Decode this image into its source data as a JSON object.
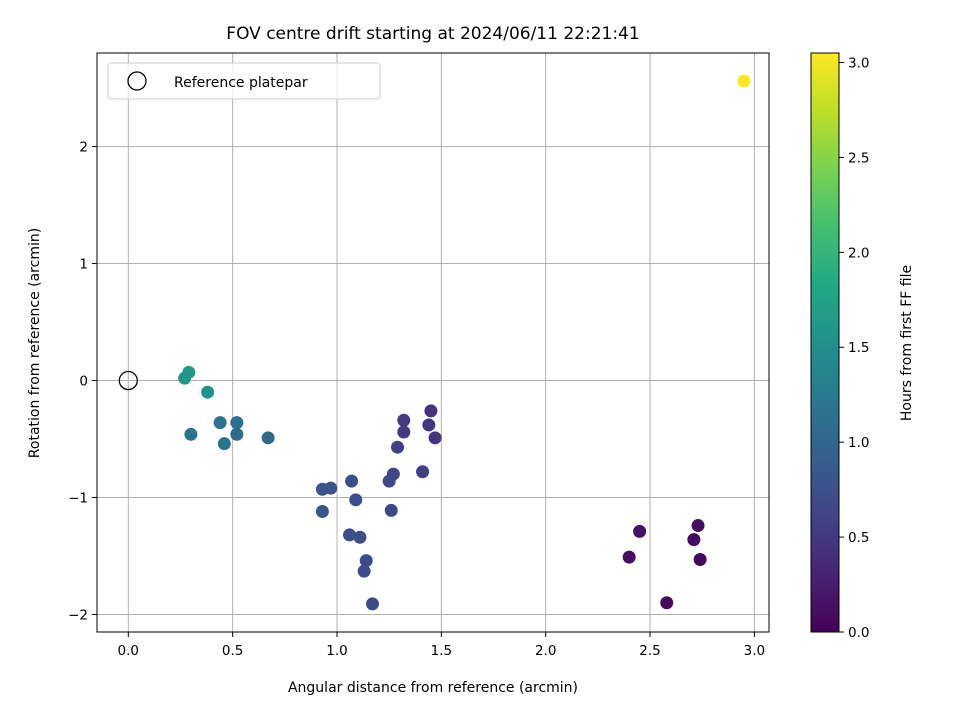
{
  "chart_data": {
    "type": "scatter",
    "title": "FOV centre drift starting at 2024/06/11 22:21:41",
    "xlabel": "Angular distance from reference (arcmin)",
    "ylabel": "Rotation from reference (arcmin)",
    "xlim": [
      -0.15,
      3.07
    ],
    "ylim": [
      -2.15,
      2.8
    ],
    "xticks": [
      "0.0",
      "0.5",
      "1.0",
      "1.5",
      "2.0",
      "2.5",
      "3.0"
    ],
    "xtick_values": [
      0,
      0.5,
      1.0,
      1.5,
      2.0,
      2.5,
      3.0
    ],
    "yticks": [
      "−2",
      "−1",
      "0",
      "1",
      "2"
    ],
    "ytick_values": [
      -2,
      -1,
      0,
      1,
      2
    ],
    "grid": true,
    "legend_position": "top-left",
    "legend": [
      {
        "label": "Reference platepar",
        "marker": "open-circle"
      }
    ],
    "reference_point": {
      "x": 0.0,
      "y": 0.0
    },
    "colorbar": {
      "label": "Hours from first FF file",
      "range": [
        0.0,
        3.05
      ],
      "ticks": [
        "0.0",
        "0.5",
        "1.0",
        "1.5",
        "2.0",
        "2.5",
        "3.0"
      ],
      "tick_values": [
        0.0,
        0.5,
        1.0,
        1.5,
        2.0,
        2.5,
        3.0
      ],
      "colormap": "viridis"
    },
    "points": [
      {
        "x": 2.95,
        "y": 2.56,
        "hours": 3.05
      },
      {
        "x": 0.29,
        "y": 0.07,
        "hours": 1.65
      },
      {
        "x": 0.27,
        "y": 0.02,
        "hours": 1.6
      },
      {
        "x": 0.38,
        "y": -0.1,
        "hours": 1.55
      },
      {
        "x": 0.3,
        "y": -0.46,
        "hours": 1.2
      },
      {
        "x": 0.44,
        "y": -0.36,
        "hours": 1.15
      },
      {
        "x": 0.46,
        "y": -0.54,
        "hours": 1.15
      },
      {
        "x": 0.52,
        "y": -0.36,
        "hours": 1.1
      },
      {
        "x": 0.52,
        "y": -0.46,
        "hours": 1.05
      },
      {
        "x": 0.67,
        "y": -0.49,
        "hours": 1.05
      },
      {
        "x": 0.93,
        "y": -0.93,
        "hours": 0.8
      },
      {
        "x": 0.97,
        "y": -0.92,
        "hours": 0.78
      },
      {
        "x": 0.93,
        "y": -1.12,
        "hours": 0.82
      },
      {
        "x": 1.07,
        "y": -0.86,
        "hours": 0.75
      },
      {
        "x": 1.09,
        "y": -1.02,
        "hours": 0.75
      },
      {
        "x": 1.06,
        "y": -1.32,
        "hours": 0.72
      },
      {
        "x": 1.11,
        "y": -1.34,
        "hours": 0.72
      },
      {
        "x": 1.14,
        "y": -1.54,
        "hours": 0.7
      },
      {
        "x": 1.13,
        "y": -1.63,
        "hours": 0.7
      },
      {
        "x": 1.17,
        "y": -1.91,
        "hours": 0.7
      },
      {
        "x": 1.25,
        "y": -0.86,
        "hours": 0.65
      },
      {
        "x": 1.27,
        "y": -0.8,
        "hours": 0.62
      },
      {
        "x": 1.26,
        "y": -1.11,
        "hours": 0.68
      },
      {
        "x": 1.29,
        "y": -0.57,
        "hours": 0.58
      },
      {
        "x": 1.32,
        "y": -0.34,
        "hours": 0.52
      },
      {
        "x": 1.32,
        "y": -0.44,
        "hours": 0.52
      },
      {
        "x": 1.41,
        "y": -0.78,
        "hours": 0.55
      },
      {
        "x": 1.44,
        "y": -0.38,
        "hours": 0.48
      },
      {
        "x": 1.45,
        "y": -0.26,
        "hours": 0.45
      },
      {
        "x": 1.47,
        "y": -0.49,
        "hours": 0.45
      },
      {
        "x": 2.4,
        "y": -1.51,
        "hours": 0.12
      },
      {
        "x": 2.45,
        "y": -1.29,
        "hours": 0.15
      },
      {
        "x": 2.58,
        "y": -1.9,
        "hours": 0.08
      },
      {
        "x": 2.71,
        "y": -1.36,
        "hours": 0.1
      },
      {
        "x": 2.73,
        "y": -1.24,
        "hours": 0.12
      },
      {
        "x": 2.74,
        "y": -1.53,
        "hours": 0.05
      }
    ]
  }
}
